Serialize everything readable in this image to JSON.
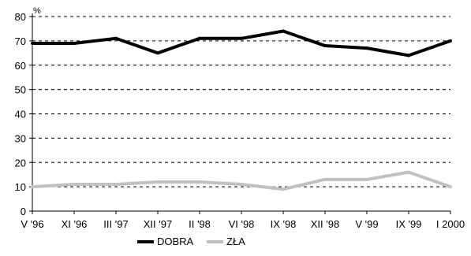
{
  "chart_data": {
    "type": "line",
    "title": "",
    "unit_label": "%",
    "categories": [
      "V '96",
      "XI '96",
      "III '97",
      "XII '97",
      "II '98",
      "VI '98",
      "IX '98",
      "XII '98",
      "V '99",
      "IX '99",
      "I 2000"
    ],
    "series": [
      {
        "name": "DOBRA",
        "color": "#000000",
        "values": [
          69,
          69,
          71,
          65,
          71,
          71,
          74,
          68,
          67,
          64,
          70
        ]
      },
      {
        "name": "ZŁA",
        "color": "#c0c0c0",
        "values": [
          10,
          11,
          11,
          12,
          12,
          11,
          9,
          13,
          13,
          16,
          10
        ]
      }
    ],
    "ylim": [
      0,
      80
    ],
    "yticks": [
      0,
      10,
      20,
      30,
      40,
      50,
      60,
      70,
      80
    ],
    "grid": "horizontal-dashed",
    "legend_position": "bottom-center"
  }
}
